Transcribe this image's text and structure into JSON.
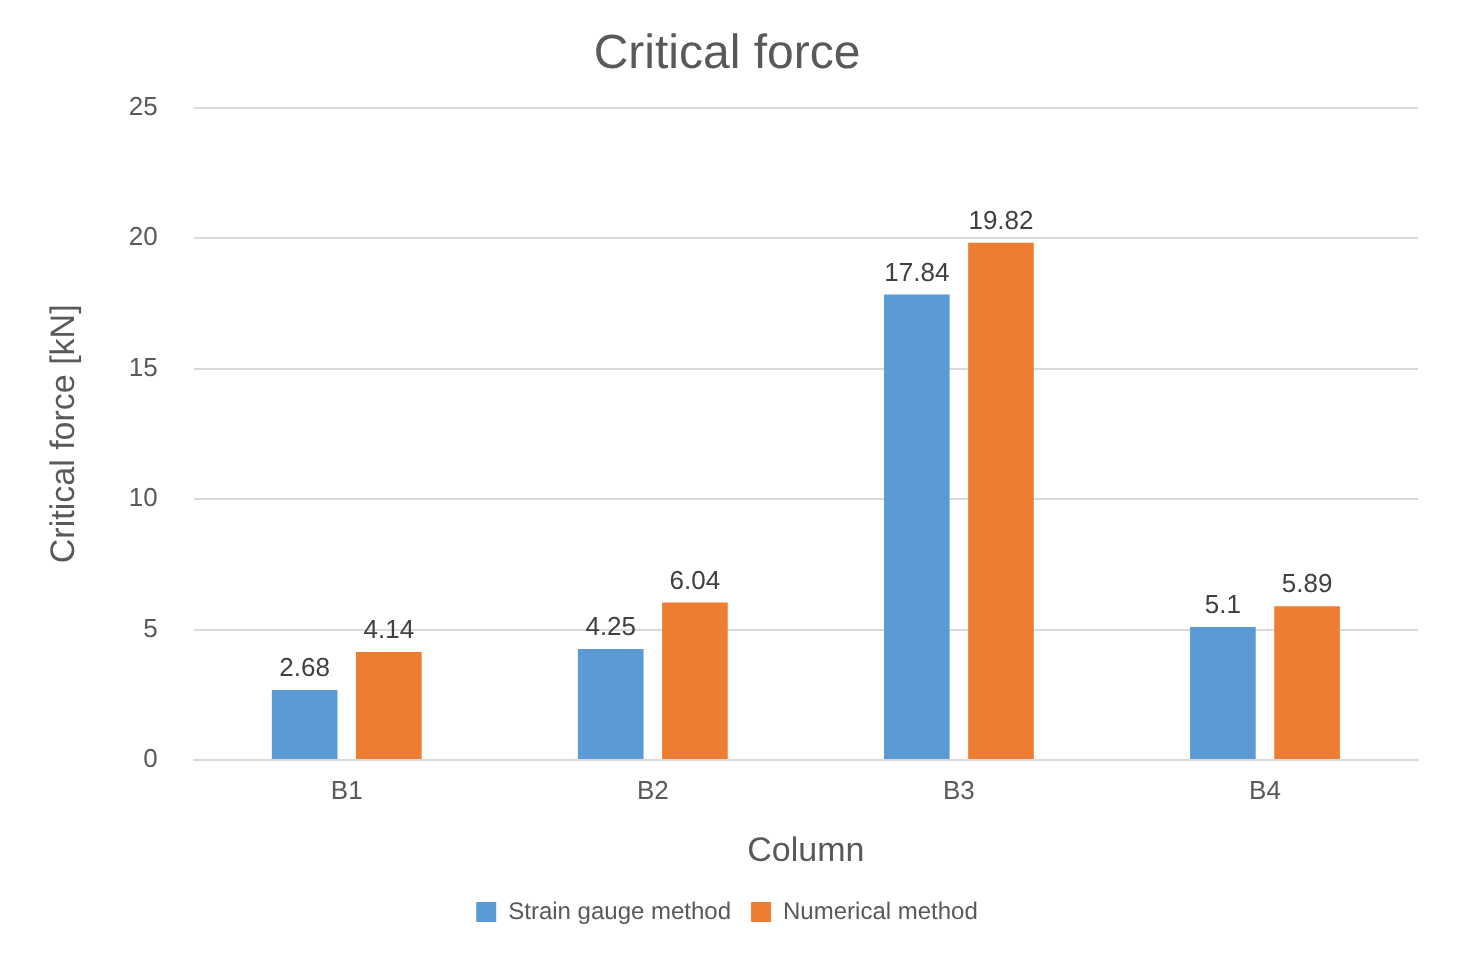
{
  "chart_data": {
    "type": "bar",
    "title": "Critical force",
    "xlabel": "Column",
    "ylabel": "Critical force [kN]",
    "categories": [
      "B1",
      "B2",
      "B3",
      "B4"
    ],
    "series": [
      {
        "name": "Strain gauge method",
        "color": "#5b9bd5",
        "values": [
          2.68,
          4.25,
          17.84,
          5.1
        ]
      },
      {
        "name": "Numerical method",
        "color": "#ed7d31",
        "values": [
          4.14,
          6.04,
          19.82,
          5.89
        ]
      }
    ],
    "ylim": [
      0,
      25
    ],
    "yticks": [
      0,
      5,
      10,
      15,
      20,
      25
    ],
    "grid": "y",
    "legend": "bottom",
    "data_labels": true
  }
}
